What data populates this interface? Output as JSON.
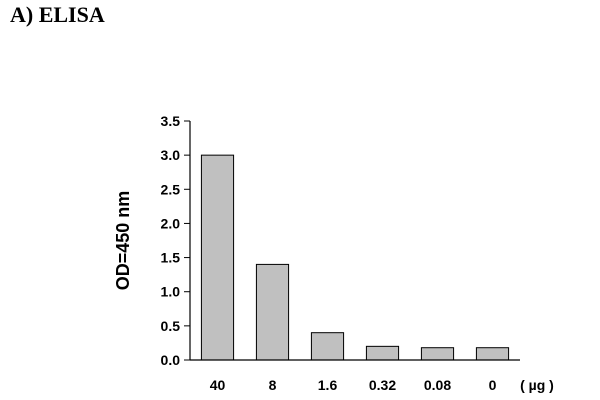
{
  "heading": "A) ELISA",
  "colors": {
    "bar_fill": "#c0c0c0",
    "bar_stroke": "#000000",
    "axis": "#000000"
  },
  "chart_data": {
    "type": "bar",
    "title": "",
    "ylabel": "OD=450 nm",
    "xlabel": "",
    "x_unit": "( µg )",
    "categories": [
      "40",
      "8",
      "1.6",
      "0.32",
      "0.08",
      "0"
    ],
    "values": [
      3.0,
      1.4,
      0.4,
      0.2,
      0.18,
      0.18
    ],
    "ylim": [
      0,
      3.5
    ],
    "yticks": [
      "0.0",
      "0.5",
      "1.0",
      "1.5",
      "2.0",
      "2.5",
      "3.0",
      "3.5"
    ],
    "grid": false,
    "legend": "none"
  }
}
